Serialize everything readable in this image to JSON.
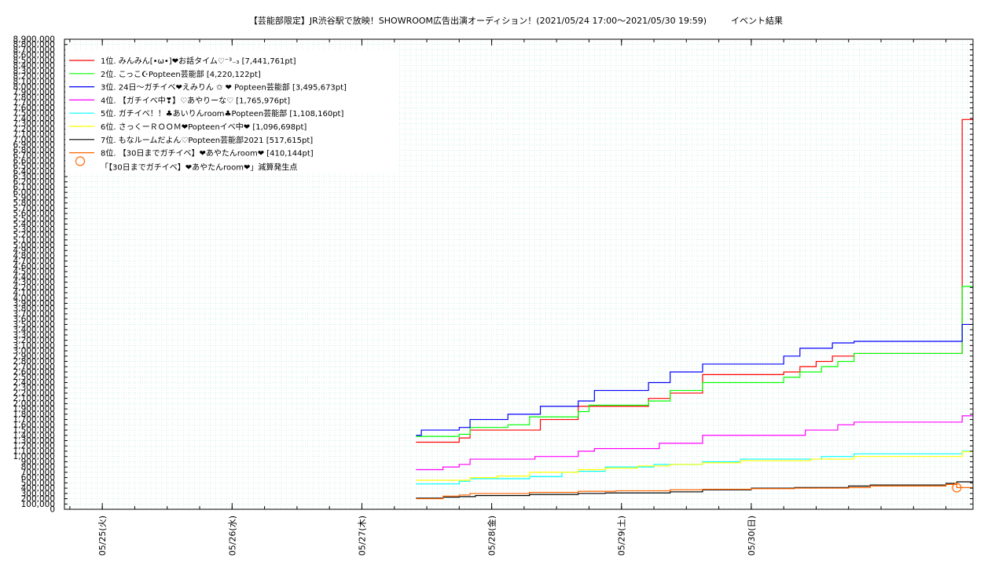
{
  "chart_data": {
    "type": "line",
    "title": "【芸能部限定】JR渋谷駅で放映！SHOWROOM広告出演オーディション！(2021/05/24 17:00〜2021/05/30 19:59)",
    "subtitle": "イベント結果",
    "xlabel": "",
    "ylabel": "",
    "x_unit": "hours since 2021/05/24 17:00",
    "xlim": [
      0,
      168
    ],
    "ylim": [
      0,
      8900000
    ],
    "ytick_step": 100000,
    "x_ticks": [
      {
        "x": 7,
        "label": "05/25(火)"
      },
      {
        "x": 31,
        "label": "05/26(水)"
      },
      {
        "x": 55,
        "label": "05/27(木)"
      },
      {
        "x": 79,
        "label": "05/28(金)"
      },
      {
        "x": 103,
        "label": "05/29(土)"
      },
      {
        "x": 127,
        "label": "05/30(日)"
      }
    ],
    "grid": true,
    "legend_position": "top-left",
    "series": [
      {
        "name": "1位. みんみん[•ω•]❤お話タイム♡⁻³₋₃ [7,441,761pt]",
        "color": "#ff0000",
        "points": [
          [
            65,
            1270000
          ],
          [
            73,
            1350000
          ],
          [
            75,
            1500000
          ],
          [
            88,
            1700000
          ],
          [
            95,
            1950000
          ],
          [
            108,
            2100000
          ],
          [
            112,
            2200000
          ],
          [
            118,
            2550000
          ],
          [
            133,
            2600000
          ],
          [
            136,
            2700000
          ],
          [
            139,
            2800000
          ],
          [
            142,
            2900000
          ],
          [
            146,
            2950000
          ],
          [
            166,
            7380000
          ],
          [
            168,
            7380000
          ]
        ]
      },
      {
        "name": "2位. こっこ☪Popteen芸能部 [4,220,122pt]",
        "color": "#00ff00",
        "points": [
          [
            65,
            1380000
          ],
          [
            73,
            1420000
          ],
          [
            75,
            1550000
          ],
          [
            82,
            1600000
          ],
          [
            86,
            1750000
          ],
          [
            95,
            1850000
          ],
          [
            97,
            1970000
          ],
          [
            108,
            2050000
          ],
          [
            112,
            2250000
          ],
          [
            118,
            2400000
          ],
          [
            133,
            2500000
          ],
          [
            136,
            2600000
          ],
          [
            140,
            2700000
          ],
          [
            143,
            2800000
          ],
          [
            146,
            2950000
          ],
          [
            166,
            4220000
          ],
          [
            168,
            4220000
          ]
        ]
      },
      {
        "name": "3位. 24日〜ガチイベ❤えみりん ✩ ❤ Popteen芸能部 [3,495,673pt]",
        "color": "#0000ff",
        "points": [
          [
            65,
            1400000
          ],
          [
            66,
            1500000
          ],
          [
            73,
            1550000
          ],
          [
            75,
            1700000
          ],
          [
            82,
            1800000
          ],
          [
            88,
            1950000
          ],
          [
            95,
            2050000
          ],
          [
            98,
            2250000
          ],
          [
            108,
            2400000
          ],
          [
            112,
            2600000
          ],
          [
            118,
            2750000
          ],
          [
            133,
            2900000
          ],
          [
            136,
            3050000
          ],
          [
            142,
            3150000
          ],
          [
            146,
            3180000
          ],
          [
            166,
            3500000
          ],
          [
            168,
            3500000
          ]
        ]
      },
      {
        "name": "4位. 【ガチイベ中❣】♡あやりーな♡ [1,765,976pt]",
        "color": "#ff00ff",
        "points": [
          [
            65,
            750000
          ],
          [
            70,
            800000
          ],
          [
            73,
            850000
          ],
          [
            75,
            950000
          ],
          [
            87,
            1000000
          ],
          [
            95,
            1100000
          ],
          [
            98,
            1150000
          ],
          [
            110,
            1250000
          ],
          [
            118,
            1400000
          ],
          [
            137,
            1500000
          ],
          [
            143,
            1600000
          ],
          [
            146,
            1650000
          ],
          [
            166,
            1770000
          ],
          [
            168,
            1770000
          ]
        ]
      },
      {
        "name": "5位. ガチイベ！！♣あいりんroom♣Popteen芸能部 [1,108,160pt]",
        "color": "#00ffff",
        "points": [
          [
            65,
            480000
          ],
          [
            73,
            530000
          ],
          [
            75,
            580000
          ],
          [
            86,
            620000
          ],
          [
            92,
            700000
          ],
          [
            95,
            720000
          ],
          [
            100,
            800000
          ],
          [
            109,
            850000
          ],
          [
            118,
            900000
          ],
          [
            125,
            950000
          ],
          [
            140,
            1000000
          ],
          [
            146,
            1050000
          ],
          [
            166,
            1100000
          ],
          [
            168,
            1100000
          ]
        ]
      },
      {
        "name": "6位. さっくーＲＯＯＭ❤Popteenイベ中❤ [1,096,698pt]",
        "color": "#ffff00",
        "points": [
          [
            65,
            550000
          ],
          [
            75,
            600000
          ],
          [
            80,
            630000
          ],
          [
            86,
            700000
          ],
          [
            95,
            750000
          ],
          [
            100,
            780000
          ],
          [
            106,
            820000
          ],
          [
            112,
            850000
          ],
          [
            118,
            880000
          ],
          [
            125,
            920000
          ],
          [
            138,
            950000
          ],
          [
            146,
            1000000
          ],
          [
            166,
            1090000
          ],
          [
            168,
            1090000
          ]
        ]
      },
      {
        "name": "7位. もなルームだよん♡Popteen芸能部2021 [517,615pt]",
        "color": "#000000",
        "points": [
          [
            65,
            210000
          ],
          [
            70,
            230000
          ],
          [
            73,
            240000
          ],
          [
            76,
            260000
          ],
          [
            86,
            280000
          ],
          [
            95,
            300000
          ],
          [
            100,
            310000
          ],
          [
            112,
            330000
          ],
          [
            118,
            370000
          ],
          [
            127,
            400000
          ],
          [
            135,
            410000
          ],
          [
            145,
            440000
          ],
          [
            149,
            460000
          ],
          [
            163,
            490000
          ],
          [
            165,
            520000
          ],
          [
            168,
            520000
          ]
        ]
      },
      {
        "name": "8位. 【30日までガチイベ】❤あやたんroom❤ [410,144pt]",
        "color": "#ff6600",
        "points": [
          [
            65,
            200000
          ],
          [
            70,
            250000
          ],
          [
            73,
            270000
          ],
          [
            75,
            300000
          ],
          [
            86,
            320000
          ],
          [
            95,
            340000
          ],
          [
            102,
            350000
          ],
          [
            112,
            370000
          ],
          [
            118,
            380000
          ],
          [
            127,
            390000
          ],
          [
            135,
            400000
          ],
          [
            145,
            410000
          ],
          [
            149,
            440000
          ],
          [
            163,
            470000
          ],
          [
            165,
            410000
          ],
          [
            168,
            410000
          ]
        ]
      }
    ],
    "annotations": [
      {
        "x": 165,
        "y": 410000,
        "marker": "open-circle",
        "color": "#ff6600",
        "label": "「【30日までガチイベ】❤あやたんroom❤」減算発生点"
      }
    ]
  }
}
